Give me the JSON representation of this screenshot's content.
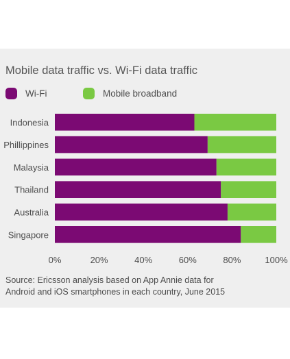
{
  "chart_data": {
    "type": "bar",
    "orientation": "horizontal",
    "stacked": true,
    "title": "Mobile data traffic vs. Wi-Fi data traffic",
    "categories": [
      "Indonesia",
      "Phillippines",
      "Malaysia",
      "Thailand",
      "Australia",
      "Singapore"
    ],
    "series": [
      {
        "name": "Wi-Fi",
        "color": "#7b0a73",
        "values": [
          63,
          69,
          73,
          75,
          78,
          84
        ]
      },
      {
        "name": "Mobile broadband",
        "color": "#7ac943",
        "values": [
          37,
          31,
          27,
          25,
          22,
          16
        ]
      }
    ],
    "xlim": [
      0,
      100
    ],
    "xticks": [
      "0%",
      "20%",
      "40%",
      "60%",
      "80%",
      "100%"
    ],
    "legend_position": "top-left",
    "grid": false
  },
  "source": {
    "line1": "Source: Ericsson analysis based on App Annie data for",
    "line2": "Android and iOS smartphones in each country, June 2015"
  }
}
